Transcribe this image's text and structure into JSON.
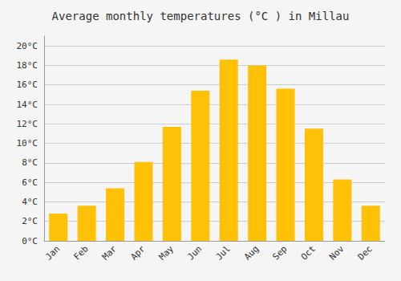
{
  "chart_data": {
    "type": "bar",
    "title": "Average monthly temperatures (°C ) in Millau",
    "categories": [
      "Jan",
      "Feb",
      "Mar",
      "Apr",
      "May",
      "Jun",
      "Jul",
      "Aug",
      "Sep",
      "Oct",
      "Nov",
      "Dec"
    ],
    "values": [
      2.8,
      3.6,
      5.4,
      8.1,
      11.7,
      15.4,
      18.6,
      18.0,
      15.6,
      11.5,
      6.3,
      3.6
    ],
    "color": "#FFC107",
    "ylim": [
      0,
      21
    ],
    "yticks": [
      {
        "value": 0,
        "label": "0°C"
      },
      {
        "value": 2,
        "label": "2°C"
      },
      {
        "value": 4,
        "label": "4°C"
      },
      {
        "value": 6,
        "label": "6°C"
      },
      {
        "value": 8,
        "label": "8°C"
      },
      {
        "value": 10,
        "label": "10°C"
      },
      {
        "value": 12,
        "label": "12°C"
      },
      {
        "value": 14,
        "label": "14°C"
      },
      {
        "value": 16,
        "label": "16°C"
      },
      {
        "value": 18,
        "label": "18°C"
      },
      {
        "value": 20,
        "label": "20°C"
      }
    ],
    "grid": true
  }
}
